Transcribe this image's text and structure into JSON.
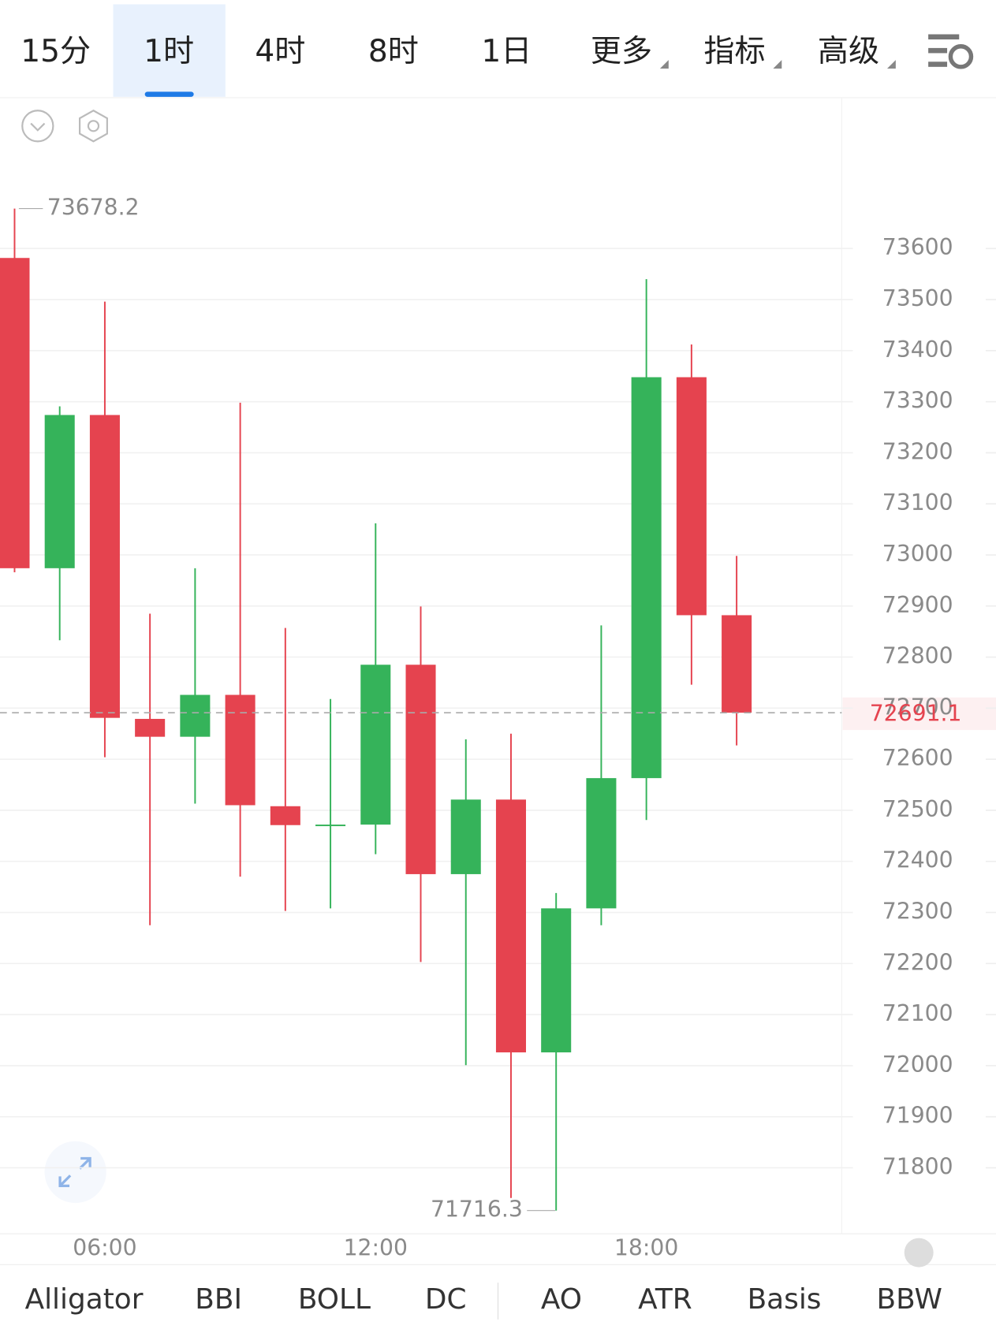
{
  "tabs": [
    "15分",
    "1时",
    "4时",
    "8时",
    "1日",
    "更多",
    "指标",
    "高级"
  ],
  "active_tab": 1,
  "indicators": [
    "Alligator",
    "BBI",
    "BOLL",
    "DC",
    "AO",
    "ATR",
    "Basis",
    "BBW"
  ],
  "chart_data": {
    "type": "candlestick",
    "categories": [
      null,
      null,
      "06:00",
      null,
      null,
      null,
      null,
      null,
      "12:00",
      null,
      null,
      null,
      null,
      null,
      "18:00",
      null,
      null
    ],
    "open": [
      73581.5,
      72974,
      73274,
      72679,
      72644,
      72726,
      72508,
      72471,
      72472,
      72785,
      72375,
      72521,
      72026,
      72308,
      72563,
      73348,
      72882
    ],
    "high": [
      73678.2,
      73291,
      73496,
      72885,
      72974,
      73298,
      72857,
      72718,
      73062,
      72899,
      72639,
      72650,
      72338,
      72862,
      73540,
      73412,
      72998
    ],
    "low": [
      72966,
      72833,
      72604,
      72275,
      72513,
      72370,
      72303,
      72308,
      72414,
      72203,
      72001,
      71741,
      71716.3,
      72275,
      72481,
      72746,
      72627
    ],
    "close": [
      72974,
      73274,
      72681,
      72644,
      72726,
      72510,
      72471,
      72472,
      72785,
      72375,
      72521,
      72026,
      72308,
      72563,
      73348,
      72882,
      72691.1
    ],
    "up_color": "#35b35a",
    "down_color": "#e5434f",
    "ylim": [
      71670.8,
      73893.6
    ],
    "yticks": [
      71800,
      71900,
      72000,
      72100,
      72200,
      72300,
      72400,
      72500,
      72600,
      72700,
      72800,
      72900,
      73000,
      73100,
      73200,
      73300,
      73400,
      73500,
      73600
    ],
    "grid": true
  }
}
